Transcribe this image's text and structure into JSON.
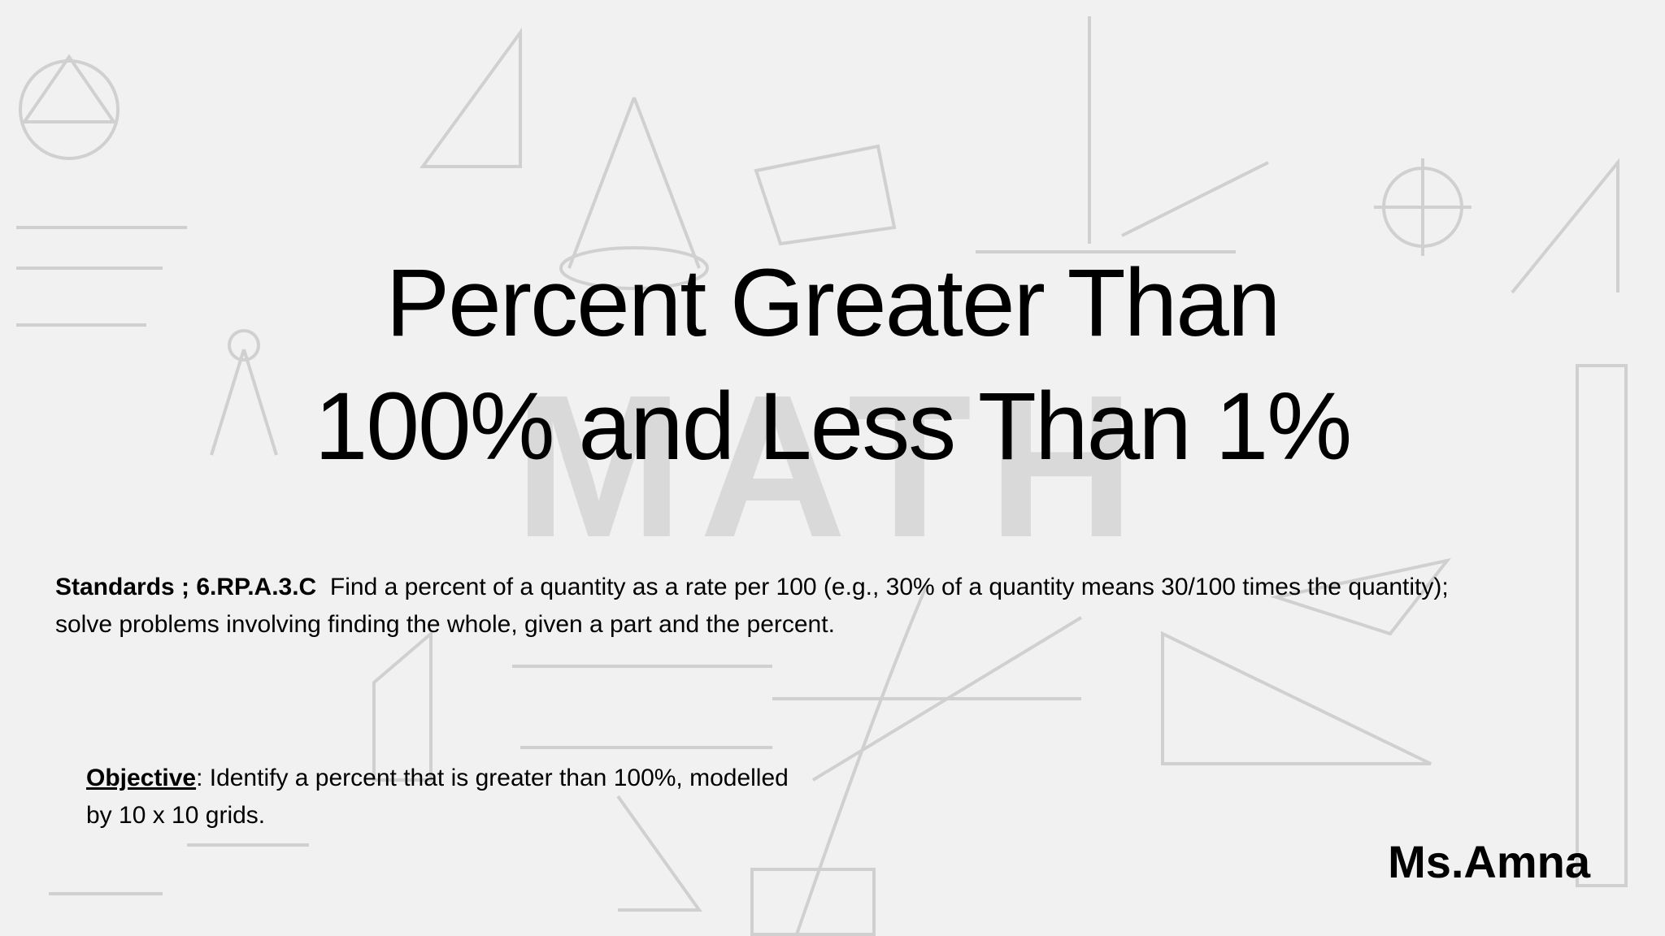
{
  "slide": {
    "watermark": "MATH",
    "title": [
      "Percent Greater Than",
      "100% and Less Than 1%"
    ],
    "standards": {
      "label": "Standards ; 6.RP.A.3.C",
      "text": "Find a percent of a quantity as a rate per 100 (e.g., 30% of a quantity means 30/100 times the quantity); solve problems involving finding the whole, given a part and the percent."
    },
    "objective": {
      "label": "Objective",
      "text": ": Identify a percent that is greater than 100%, modelled by 10 x 10 grids."
    },
    "author": "Ms.Amna"
  }
}
